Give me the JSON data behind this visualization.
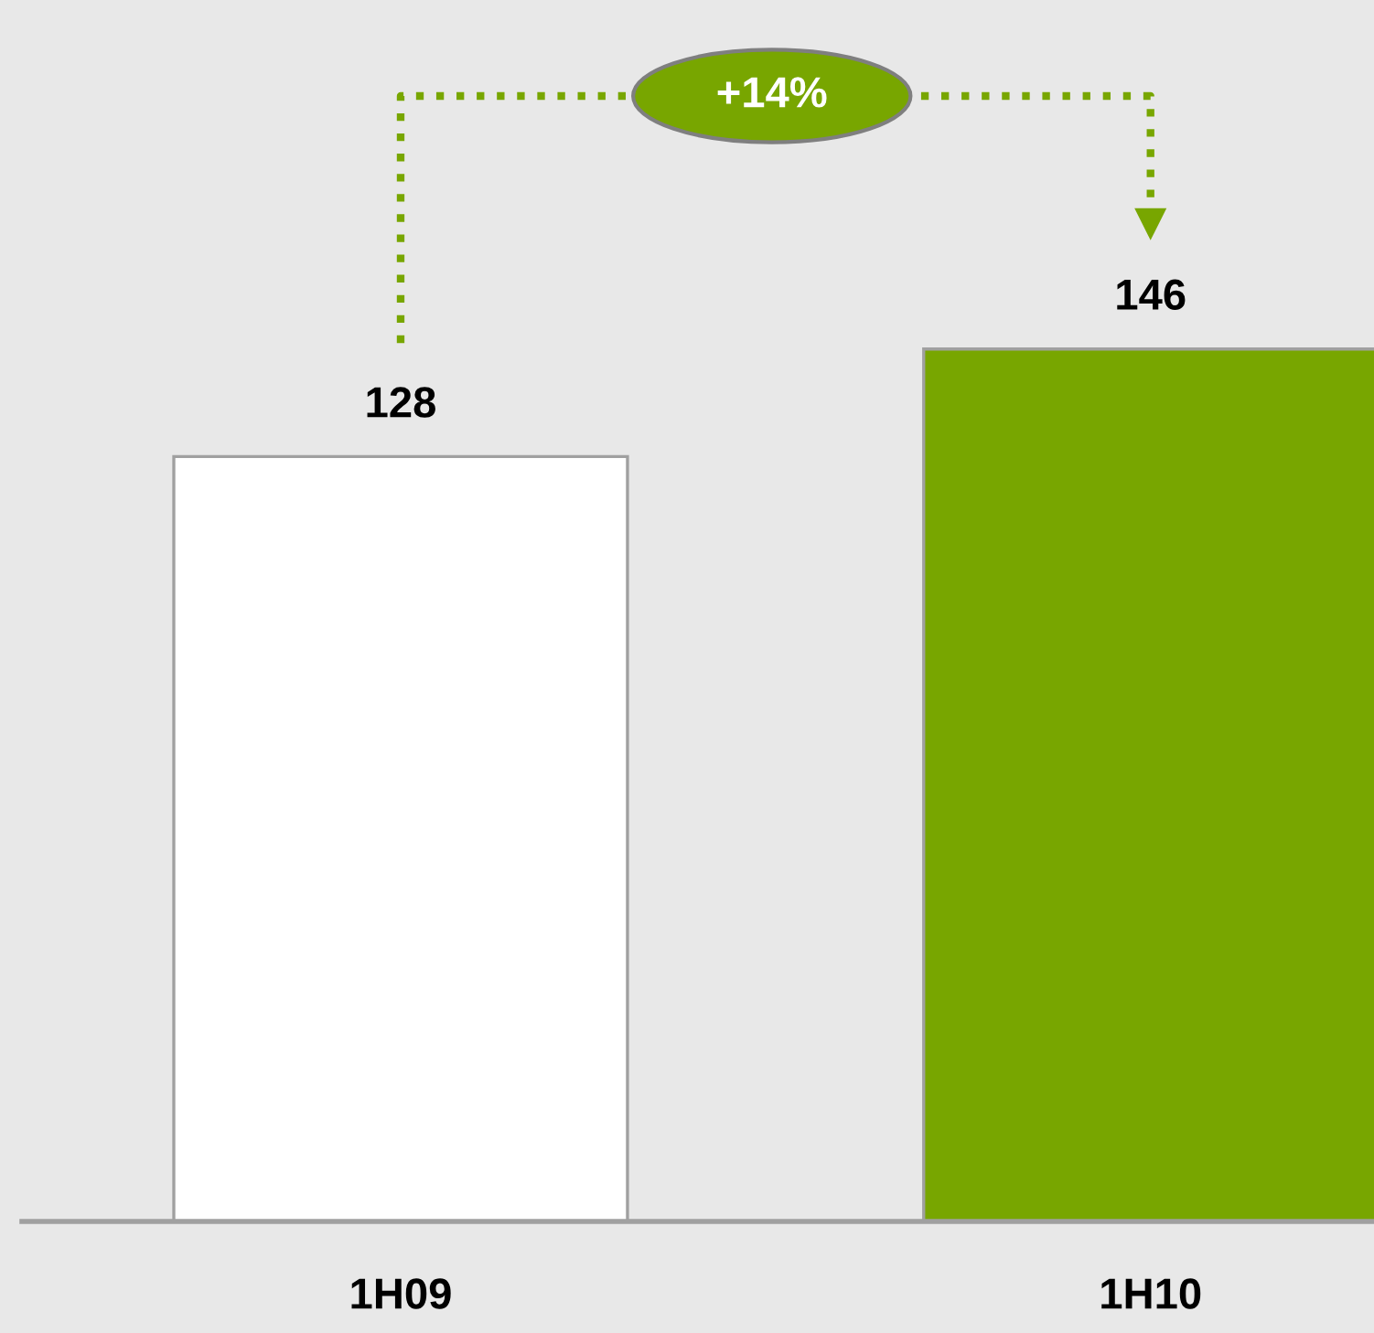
{
  "chart_data": {
    "type": "bar",
    "categories": [
      "1H09",
      "1H10"
    ],
    "values": [
      128,
      146
    ],
    "colors": [
      "#ffffff",
      "#78a600"
    ],
    "data_labels": true,
    "grid": false,
    "annotations": [
      "+14%"
    ]
  }
}
